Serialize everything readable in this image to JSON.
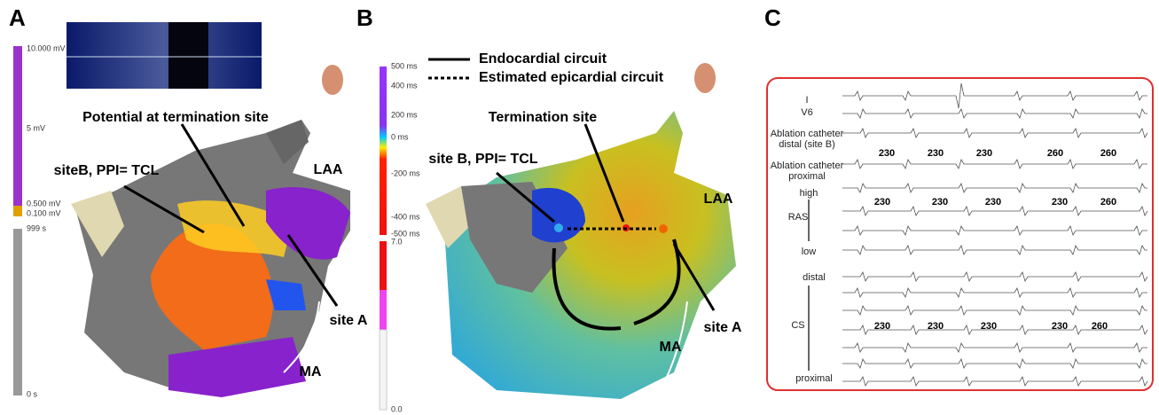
{
  "panel_a": {
    "label": "A",
    "scale_labels": [
      "10.000 mV",
      "5 mV",
      "0.500 mV",
      "0.100 mV",
      "999 s",
      "0 s"
    ],
    "annotations": [
      "Potential at termination site",
      "siteB, PPI= TCL",
      "LAA",
      "site A",
      "MA"
    ]
  },
  "panel_b": {
    "label": "B",
    "legend": [
      "Endocardial circuit",
      "Estimated epicardial circuit"
    ],
    "scale_labels": [
      "500 ms",
      "400 ms",
      "200 ms",
      "0 ms",
      "-200 ms",
      "-400 ms",
      "-500 ms",
      "7.0",
      "0.0"
    ],
    "annotations": [
      "Termination site",
      "site B, PPI= TCL",
      "LAA",
      "site A",
      "MA"
    ]
  },
  "panel_c": {
    "label": "C",
    "leads": [
      "I",
      "V6",
      "Ablation catheter",
      "distal (site B)",
      "Ablation catheter",
      "proximal",
      "high",
      "RAS",
      "low",
      "distal",
      "CS",
      "proximal"
    ],
    "cycle_lengths": {
      "ablation": [
        "230",
        "230",
        "230",
        "260",
        "260"
      ],
      "ras": [
        "230",
        "230",
        "230",
        "230",
        "260"
      ],
      "cs": [
        "230",
        "230",
        "230",
        "230",
        "260"
      ]
    }
  }
}
